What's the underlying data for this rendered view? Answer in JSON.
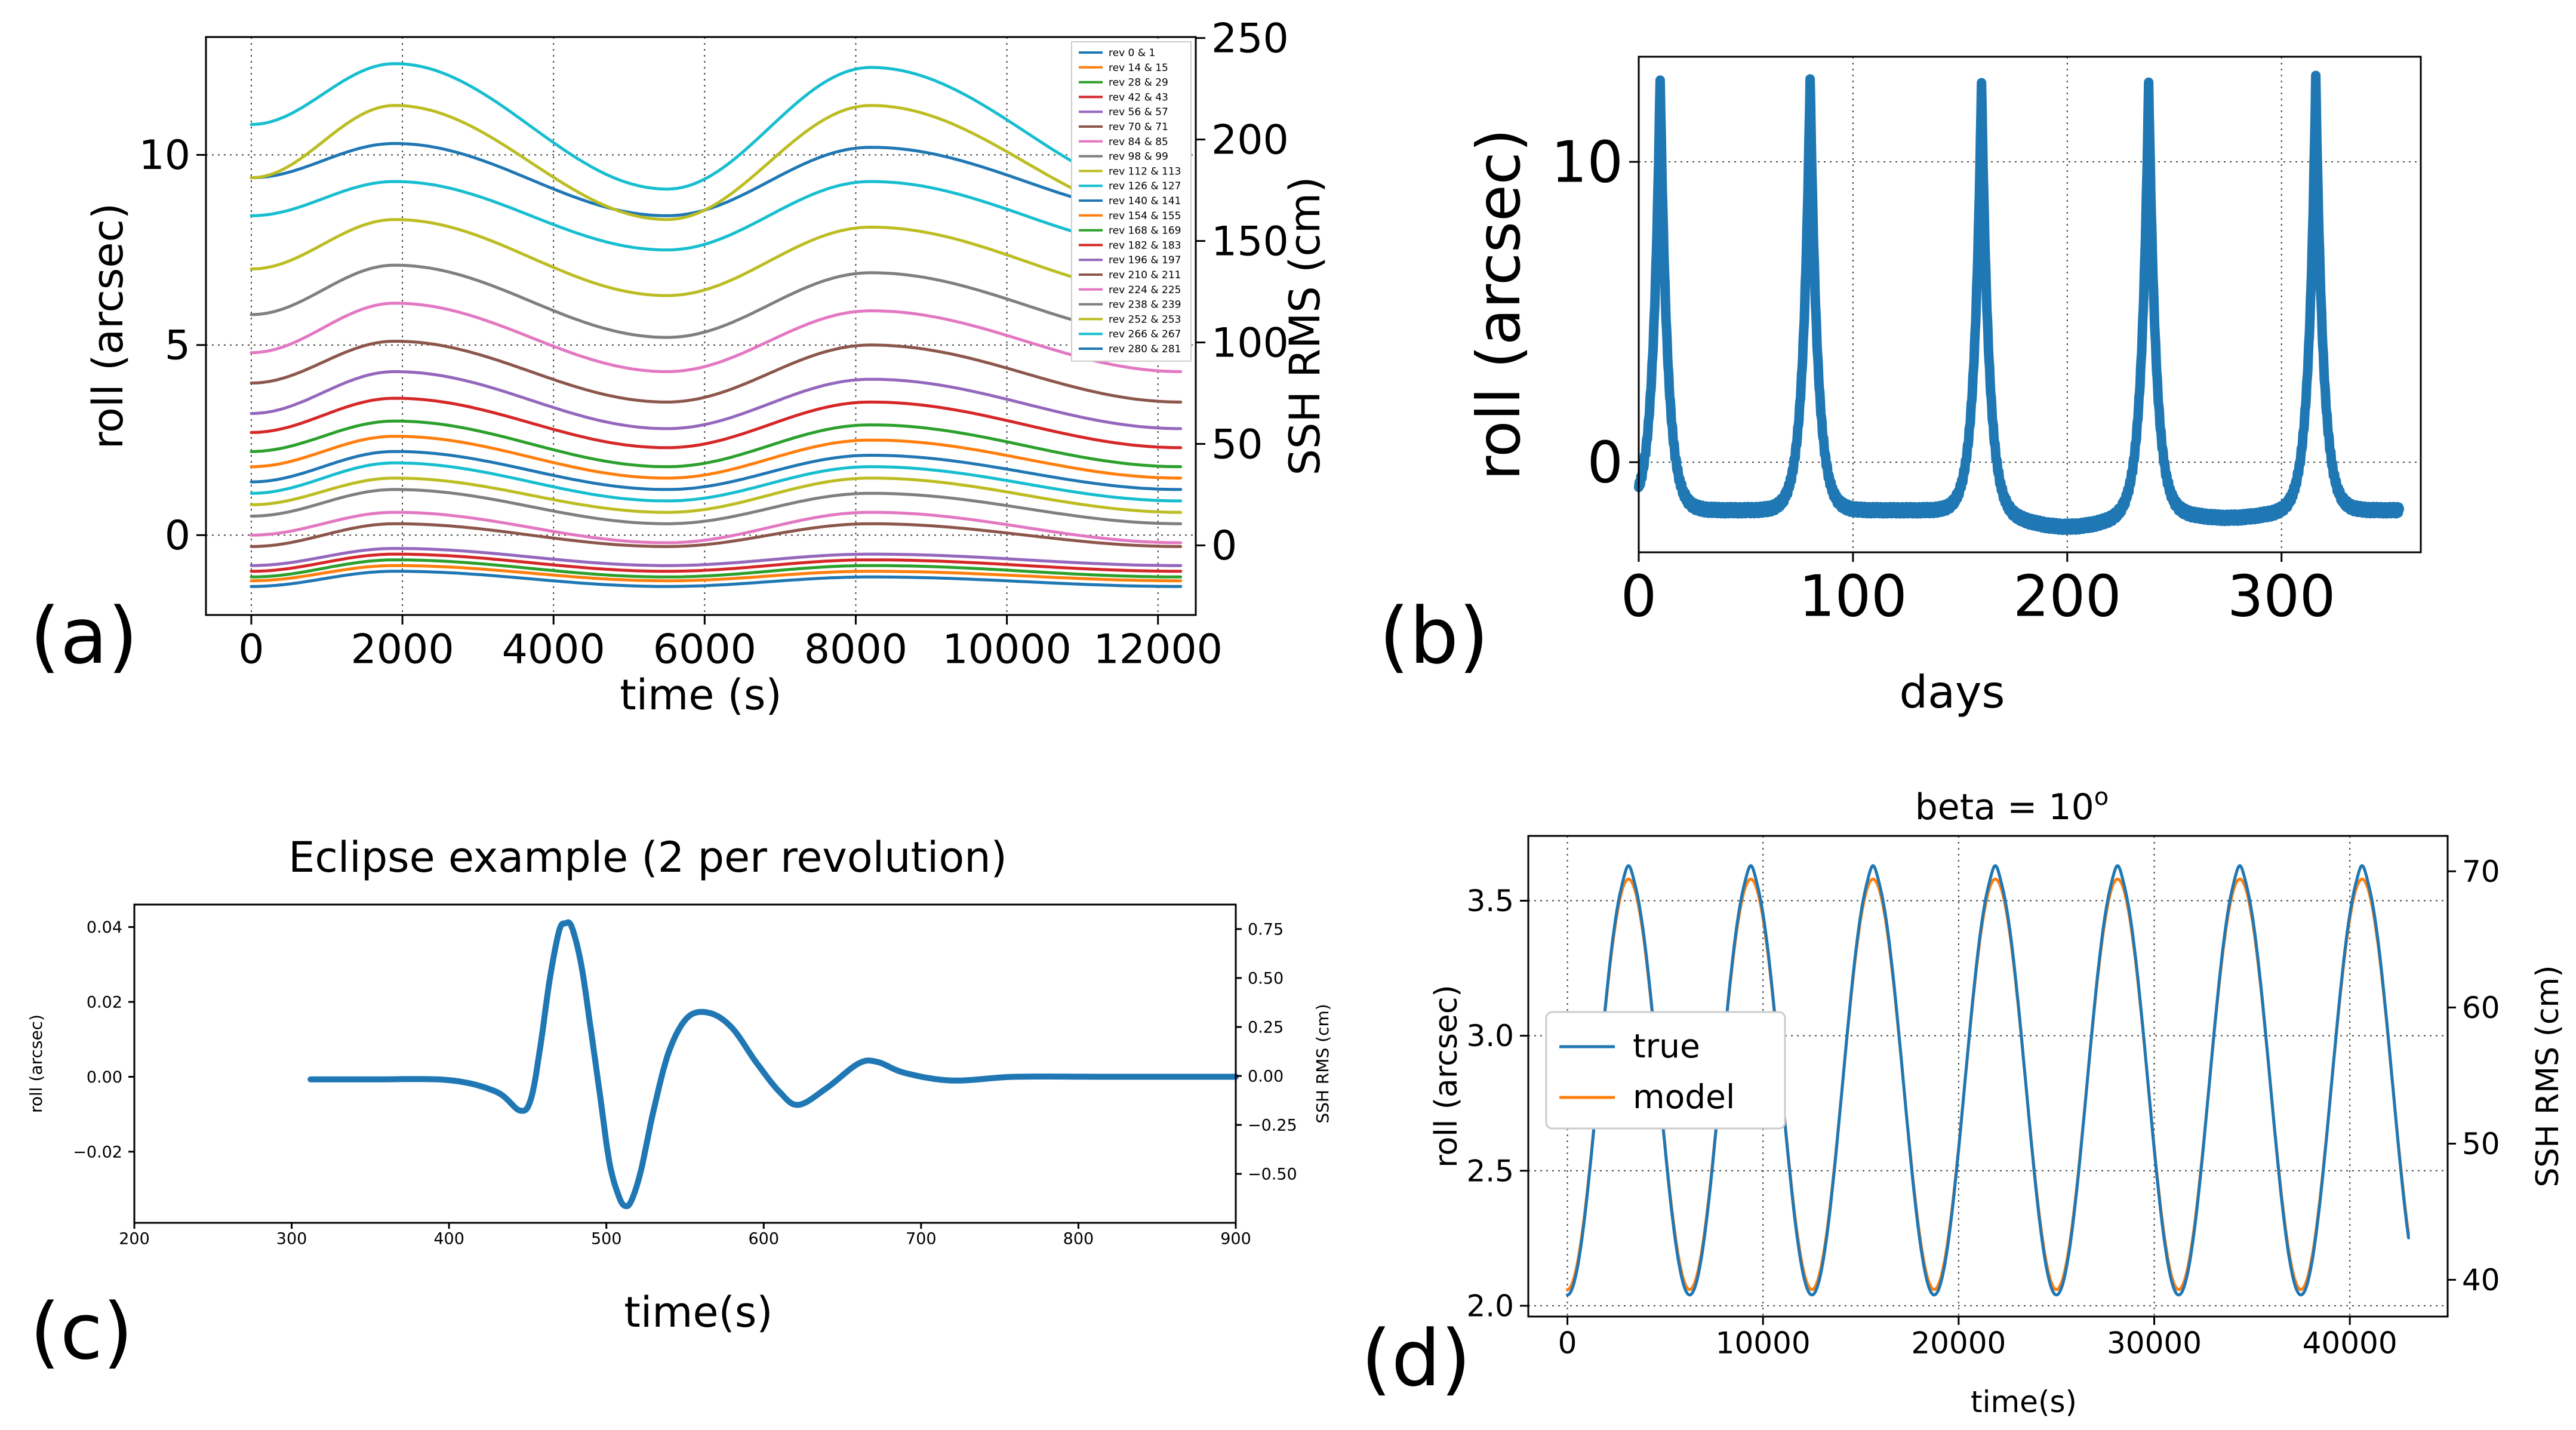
{
  "chart_data": [
    {
      "panel": "(a)",
      "type": "line",
      "title": "",
      "xlabel": "time (s)",
      "ylabel": "roll (arcsec)",
      "ylabel_right": "SSH RMS (cm)",
      "xlim": [
        -600,
        12500
      ],
      "ylim": [
        -2.1,
        13.1
      ],
      "ylim_right": [
        -34.3,
        250.5
      ],
      "xticks": [
        0,
        2000,
        4000,
        6000,
        8000,
        10000,
        12000
      ],
      "yticks": [
        0,
        5,
        10
      ],
      "yticks_right": [
        0,
        50,
        100,
        150,
        200,
        250
      ],
      "grid": true,
      "legend": "top-right",
      "series": [
        {
          "name": "rev 0 & 1",
          "color": "#1f77b4",
          "y0": -1.35,
          "peak1": -0.95,
          "trough": -1.35,
          "peak2": -1.1,
          "yend": -1.35
        },
        {
          "name": "rev 14 & 15",
          "color": "#ff7f0e",
          "y0": -1.2,
          "peak1": -0.8,
          "trough": -1.2,
          "peak2": -0.95,
          "yend": -1.2
        },
        {
          "name": "rev 28 & 29",
          "color": "#2ca02c",
          "y0": -1.1,
          "peak1": -0.65,
          "trough": -1.1,
          "peak2": -0.8,
          "yend": -1.1
        },
        {
          "name": "rev 42 & 43",
          "color": "#d62728",
          "y0": -0.95,
          "peak1": -0.5,
          "trough": -0.95,
          "peak2": -0.65,
          "yend": -0.95
        },
        {
          "name": "rev 56 & 57",
          "color": "#9467bd",
          "y0": -0.8,
          "peak1": -0.35,
          "trough": -0.8,
          "peak2": -0.5,
          "yend": -0.8
        },
        {
          "name": "rev 70 & 71",
          "color": "#8c564b",
          "y0": -0.3,
          "peak1": 0.3,
          "trough": -0.3,
          "peak2": 0.3,
          "yend": -0.3
        },
        {
          "name": "rev 84 & 85",
          "color": "#e377c2",
          "y0": 0.0,
          "peak1": 0.6,
          "trough": -0.2,
          "peak2": 0.6,
          "yend": -0.2
        },
        {
          "name": "rev 98 & 99",
          "color": "#7f7f7f",
          "y0": 0.5,
          "peak1": 1.2,
          "trough": 0.3,
          "peak2": 1.1,
          "yend": 0.3
        },
        {
          "name": "rev 112 & 113",
          "color": "#bcbd22",
          "y0": 0.8,
          "peak1": 1.5,
          "trough": 0.6,
          "peak2": 1.5,
          "yend": 0.6
        },
        {
          "name": "rev 126 & 127",
          "color": "#17becf",
          "y0": 1.1,
          "peak1": 1.9,
          "trough": 0.9,
          "peak2": 1.8,
          "yend": 0.9
        },
        {
          "name": "rev 140 & 141",
          "color": "#1f77b4",
          "y0": 1.4,
          "peak1": 2.2,
          "trough": 1.2,
          "peak2": 2.1,
          "yend": 1.2
        },
        {
          "name": "rev 154 & 155",
          "color": "#ff7f0e",
          "y0": 1.8,
          "peak1": 2.6,
          "trough": 1.5,
          "peak2": 2.5,
          "yend": 1.5
        },
        {
          "name": "rev 168 & 169",
          "color": "#2ca02c",
          "y0": 2.2,
          "peak1": 3.0,
          "trough": 1.8,
          "peak2": 2.9,
          "yend": 1.8
        },
        {
          "name": "rev 182 & 183",
          "color": "#d62728",
          "y0": 2.7,
          "peak1": 3.6,
          "trough": 2.3,
          "peak2": 3.5,
          "yend": 2.3
        },
        {
          "name": "rev 196 & 197",
          "color": "#9467bd",
          "y0": 3.2,
          "peak1": 4.3,
          "trough": 2.8,
          "peak2": 4.1,
          "yend": 2.8
        },
        {
          "name": "rev 210 & 211",
          "color": "#8c564b",
          "y0": 4.0,
          "peak1": 5.1,
          "trough": 3.5,
          "peak2": 5.0,
          "yend": 3.5
        },
        {
          "name": "rev 224 & 225",
          "color": "#e377c2",
          "y0": 4.8,
          "peak1": 6.1,
          "trough": 4.3,
          "peak2": 5.9,
          "yend": 4.3
        },
        {
          "name": "rev 238 & 239",
          "color": "#7f7f7f",
          "y0": 5.8,
          "peak1": 7.1,
          "trough": 5.2,
          "peak2": 6.9,
          "yend": 5.2
        },
        {
          "name": "rev 252 & 253",
          "color": "#bcbd22",
          "y0": 7.0,
          "peak1": 8.3,
          "trough": 6.3,
          "peak2": 8.1,
          "yend": 6.3
        },
        {
          "name": "rev 266 & 267",
          "color": "#17becf",
          "y0": 8.4,
          "peak1": 9.3,
          "trough": 7.5,
          "peak2": 9.3,
          "yend": 7.5
        },
        {
          "name": "rev 280 & 281",
          "color": "#1f77b4",
          "y0": 9.4,
          "peak1": 10.3,
          "trough": 8.4,
          "peak2": 10.2,
          "yend": 8.4
        }
      ],
      "extra_series_unlisted": [
        {
          "color": "#bcbd22",
          "y0": 9.4,
          "peak1": 11.3,
          "trough": 8.3,
          "peak2": 11.3,
          "yend": 8.3
        },
        {
          "color": "#17becf",
          "y0": 10.8,
          "peak1": 12.4,
          "trough": 9.1,
          "peak2": 12.3,
          "yend": 8.9
        }
      ],
      "peak_times": {
        "peak1": 1900,
        "trough": 5500,
        "peak2": 8200,
        "end": 12300
      }
    },
    {
      "panel": "(b)",
      "type": "line",
      "xlabel": "days",
      "ylabel": "roll (arcsec)",
      "xlim": [
        0,
        365
      ],
      "ylim": [
        -3,
        13.5
      ],
      "xticks": [
        0,
        100,
        200,
        300
      ],
      "yticks": [
        0,
        10
      ],
      "grid": true,
      "series": [
        {
          "name": "roll",
          "color": "#1f77b4",
          "peak_days": [
            10,
            80,
            160,
            238,
            316
          ],
          "peak_value": 12.8,
          "baseline": -1.6,
          "dip_day": 200,
          "dip_value": -2.1
        }
      ]
    },
    {
      "panel": "(c)",
      "type": "line",
      "title": "Eclipse example (2 per revolution)",
      "xlabel": "time(s)",
      "ylabel": "roll (arcsec)",
      "ylabel_right": "SSH RMS (cm)",
      "xlim": [
        200,
        900
      ],
      "ylim": [
        -0.039,
        0.046
      ],
      "ylim_right": [
        -0.75,
        0.875
      ],
      "xticks": [
        200,
        300,
        400,
        500,
        600,
        700,
        800,
        900
      ],
      "yticks": [
        -0.02,
        0.0,
        0.02,
        0.04
      ],
      "ytick_labels": [
        "−0.02",
        "0.00",
        "0.02",
        "0.04"
      ],
      "yticks_right": [
        -0.5,
        -0.25,
        0.0,
        0.25,
        0.5,
        0.75
      ],
      "ytick_labels_right": [
        "−0.50",
        "−0.25",
        "0.00",
        "0.25",
        "0.50",
        "0.75"
      ],
      "grid": false,
      "series": [
        {
          "name": "roll",
          "color": "#1f77b4",
          "x": [
            312,
            350,
            400,
            430,
            445,
            452,
            458,
            464,
            470,
            474,
            478,
            484,
            490,
            496,
            502,
            508,
            512,
            516,
            522,
            530,
            540,
            552,
            566,
            580,
            595,
            610,
            622,
            640,
            660,
            672,
            690,
            720,
            760,
            820,
            900
          ],
          "y": [
            -0.0007,
            -0.0007,
            -0.0009,
            -0.004,
            -0.009,
            -0.006,
            0.008,
            0.026,
            0.039,
            0.041,
            0.04,
            0.03,
            0.013,
            -0.005,
            -0.023,
            -0.032,
            -0.0345,
            -0.033,
            -0.025,
            -0.009,
            0.007,
            0.016,
            0.017,
            0.013,
            0.004,
            -0.004,
            -0.0075,
            -0.003,
            0.0035,
            0.004,
            0.001,
            -0.001,
            0.0,
            0.0,
            0.0
          ]
        }
      ]
    },
    {
      "panel": "(d)",
      "type": "line",
      "title": "beta = 10",
      "title_superscript": "o",
      "xlabel": "time(s)",
      "ylabel": "roll (arcsec)",
      "ylabel_right": "SSH RMS (cm)",
      "xlim": [
        -2000,
        45000
      ],
      "ylim": [
        1.96,
        3.74
      ],
      "ylim_right": [
        37.3,
        72.6
      ],
      "xticks": [
        0,
        10000,
        20000,
        30000,
        40000
      ],
      "yticks": [
        2.0,
        2.5,
        3.0,
        3.5
      ],
      "yticks_right": [
        40,
        50,
        60,
        70
      ],
      "grid": true,
      "legend": "center-left",
      "series": [
        {
          "name": "true",
          "color": "#1f77b4",
          "mean": 2.82,
          "amplitude": 0.78,
          "period": 6250,
          "start_x": 0,
          "end_x": 43000
        },
        {
          "name": "model",
          "color": "#ff7f0e",
          "mean": 2.82,
          "amplitude": 0.76,
          "period": 6250,
          "start_x": 0,
          "end_x": 43000
        }
      ]
    }
  ],
  "panel_labels": [
    "(a)",
    "(b)",
    "(c)",
    "(d)"
  ]
}
